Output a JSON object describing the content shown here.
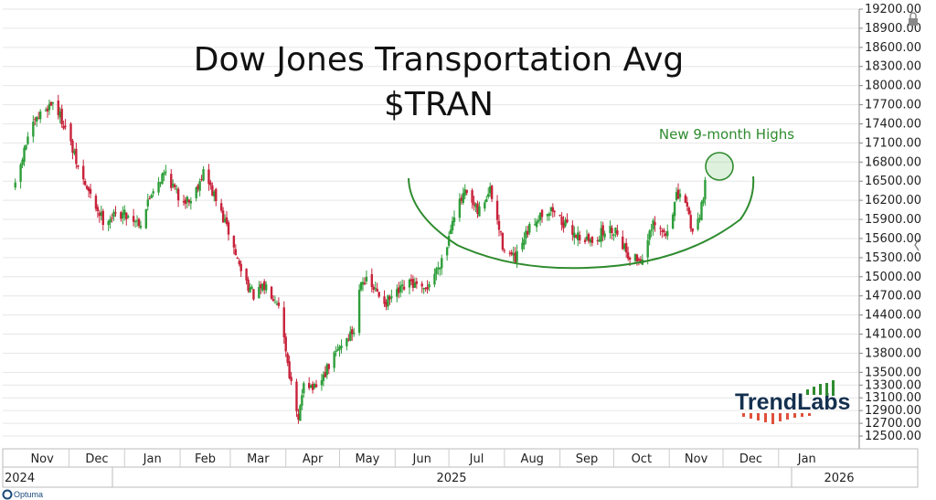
{
  "chart_data": {
    "type": "candlestick",
    "title": "Dow Jones Transportation Avg",
    "subtitle": "$TRAN",
    "ylim": [
      12300,
      19200
    ],
    "y_ticks": [
      "12500.00",
      "12700.00",
      "12900.00",
      "13100.00",
      "13300.00",
      "13500.00",
      "13800.00",
      "14100.00",
      "14400.00",
      "14700.00",
      "15000.00",
      "15300.00",
      "15600.00",
      "15900.00",
      "16200.00",
      "16500.00",
      "16800.00",
      "17100.00",
      "17400.00",
      "17700.00",
      "18000.00",
      "18300.00",
      "18600.00",
      "18900.00",
      "19200.00"
    ],
    "x_months": [
      "Nov",
      "Dec",
      "Jan",
      "Feb",
      "Mar",
      "Apr",
      "May",
      "Jun",
      "Jul",
      "Aug",
      "Sep",
      "Oct",
      "Nov",
      "Dec",
      "Jan"
    ],
    "years": [
      "2024",
      "2025",
      "2026"
    ],
    "annotation": "New 9-month Highs",
    "pattern": "rounding bottom (saucer) arc",
    "colors": {
      "up": "#2e9e3a",
      "down": "#c8223a",
      "annotation": "#2e8b2e",
      "grid": "#e6e6e6"
    },
    "close_path": [
      [
        "2024-11-01",
        16400
      ],
      [
        "2024-11-08",
        17200
      ],
      [
        "2024-11-15",
        17550
      ],
      [
        "2024-11-22",
        17750
      ],
      [
        "2024-11-29",
        17350
      ],
      [
        "2024-12-06",
        16700
      ],
      [
        "2024-12-13",
        16250
      ],
      [
        "2024-12-20",
        15900
      ],
      [
        "2024-12-31",
        16000
      ],
      [
        "2025-01-10",
        15850
      ],
      [
        "2025-01-17",
        16400
      ],
      [
        "2025-01-24",
        16650
      ],
      [
        "2025-01-31",
        16250
      ],
      [
        "2025-02-07",
        16200
      ],
      [
        "2025-02-14",
        16650
      ],
      [
        "2025-02-21",
        16200
      ],
      [
        "2025-02-28",
        15700
      ],
      [
        "2025-03-07",
        15100
      ],
      [
        "2025-03-14",
        14700
      ],
      [
        "2025-03-21",
        14850
      ],
      [
        "2025-03-28",
        14600
      ],
      [
        "2025-04-04",
        13300
      ],
      [
        "2025-04-08",
        12700
      ],
      [
        "2025-04-11",
        13400
      ],
      [
        "2025-04-18",
        13200
      ],
      [
        "2025-04-25",
        13600
      ],
      [
        "2025-05-02",
        13950
      ],
      [
        "2025-05-09",
        14150
      ],
      [
        "2025-05-13",
        15000
      ],
      [
        "2025-05-20",
        14800
      ],
      [
        "2025-05-27",
        14600
      ],
      [
        "2025-06-03",
        14750
      ],
      [
        "2025-06-10",
        14900
      ],
      [
        "2025-06-17",
        14750
      ],
      [
        "2025-06-24",
        15100
      ],
      [
        "2025-06-30",
        15500
      ],
      [
        "2025-07-03",
        15950
      ],
      [
        "2025-07-10",
        16300
      ],
      [
        "2025-07-17",
        16000
      ],
      [
        "2025-07-24",
        16350
      ],
      [
        "2025-07-31",
        15500
      ],
      [
        "2025-08-07",
        15250
      ],
      [
        "2025-08-14",
        15700
      ],
      [
        "2025-08-21",
        16000
      ],
      [
        "2025-08-28",
        16050
      ],
      [
        "2025-09-04",
        15800
      ],
      [
        "2025-09-11",
        15650
      ],
      [
        "2025-09-18",
        15550
      ],
      [
        "2025-09-25",
        15700
      ],
      [
        "2025-10-02",
        15750
      ],
      [
        "2025-10-09",
        15350
      ],
      [
        "2025-10-16",
        15250
      ],
      [
        "2025-10-23",
        15800
      ],
      [
        "2025-10-30",
        15650
      ],
      [
        "2025-11-05",
        16250
      ],
      [
        "2025-11-10",
        16200
      ],
      [
        "2025-11-14",
        15700
      ],
      [
        "2025-11-18",
        16000
      ],
      [
        "2025-11-21",
        16450
      ]
    ]
  },
  "brand": {
    "name": "TrendLabs",
    "platform": "Optuma"
  }
}
